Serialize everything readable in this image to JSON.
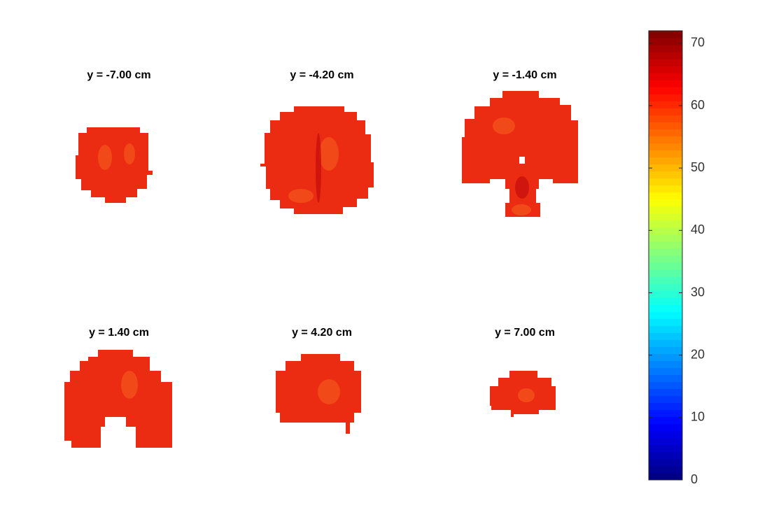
{
  "chart_data": {
    "type": "image-grid",
    "panels": [
      {
        "title": "y = -7.00 cm"
      },
      {
        "title": "y = -4.20 cm"
      },
      {
        "title": "y = -1.40 cm"
      },
      {
        "title": "y = 1.40 cm"
      },
      {
        "title": "y = 4.20 cm"
      },
      {
        "title": "y = 7.00 cm"
      }
    ],
    "colorbar": {
      "colormap": "jet",
      "clim": [
        0,
        72
      ],
      "ticks": [
        0,
        10,
        20,
        30,
        40,
        50,
        60,
        70
      ]
    }
  }
}
